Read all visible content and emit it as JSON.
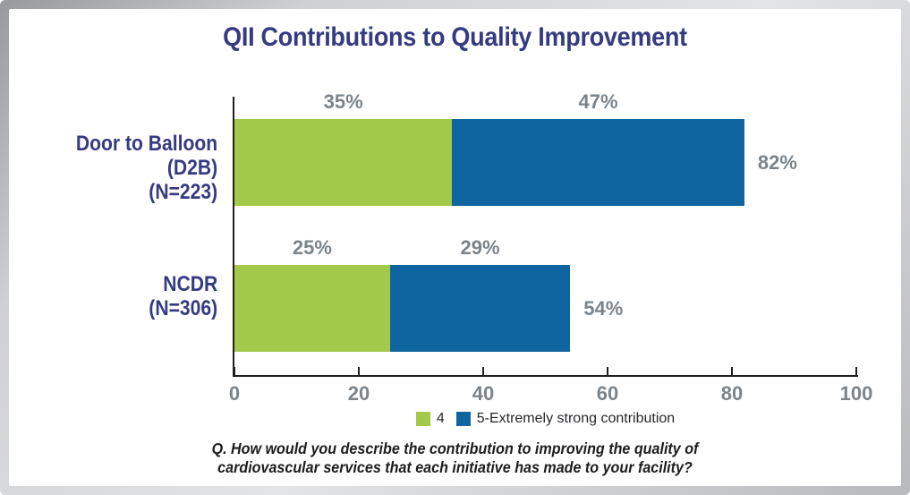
{
  "frame": {
    "background": "#ffffff",
    "border_tone": "#b9babd"
  },
  "colors": {
    "title_navy": "#343b80",
    "value_gray": "#7b848b",
    "axis_black": "#231f20",
    "series_green": "#a3c94a",
    "series_blue": "#0e65a0"
  },
  "chart_data": {
    "type": "bar",
    "orientation": "horizontal",
    "stacked": true,
    "title": "QII Contributions to Quality Improvement",
    "categories": [
      "Door to Balloon (D2B)",
      "NCDR"
    ],
    "category_sublabels": [
      "(N=223)",
      "(N=306)"
    ],
    "series": [
      {
        "name": "4",
        "color": "#a3c94a",
        "values": [
          35,
          25
        ]
      },
      {
        "name": "5-Extremely strong contribution",
        "color": "#0e65a0",
        "values": [
          47,
          29
        ]
      }
    ],
    "segment_labels": [
      [
        "35%",
        "47%"
      ],
      [
        "25%",
        "29%"
      ]
    ],
    "totals": [
      82,
      54
    ],
    "total_labels": [
      "82%",
      "54%"
    ],
    "xlim": [
      0,
      100
    ],
    "x_ticks": [
      0,
      20,
      40,
      60,
      80,
      100
    ],
    "grid": false,
    "legend_position": "bottom",
    "question_lines": [
      "Q. How would you describe the contribution to improving the quality of",
      "cardiovascular services that each initiative has made to your facility?"
    ]
  }
}
